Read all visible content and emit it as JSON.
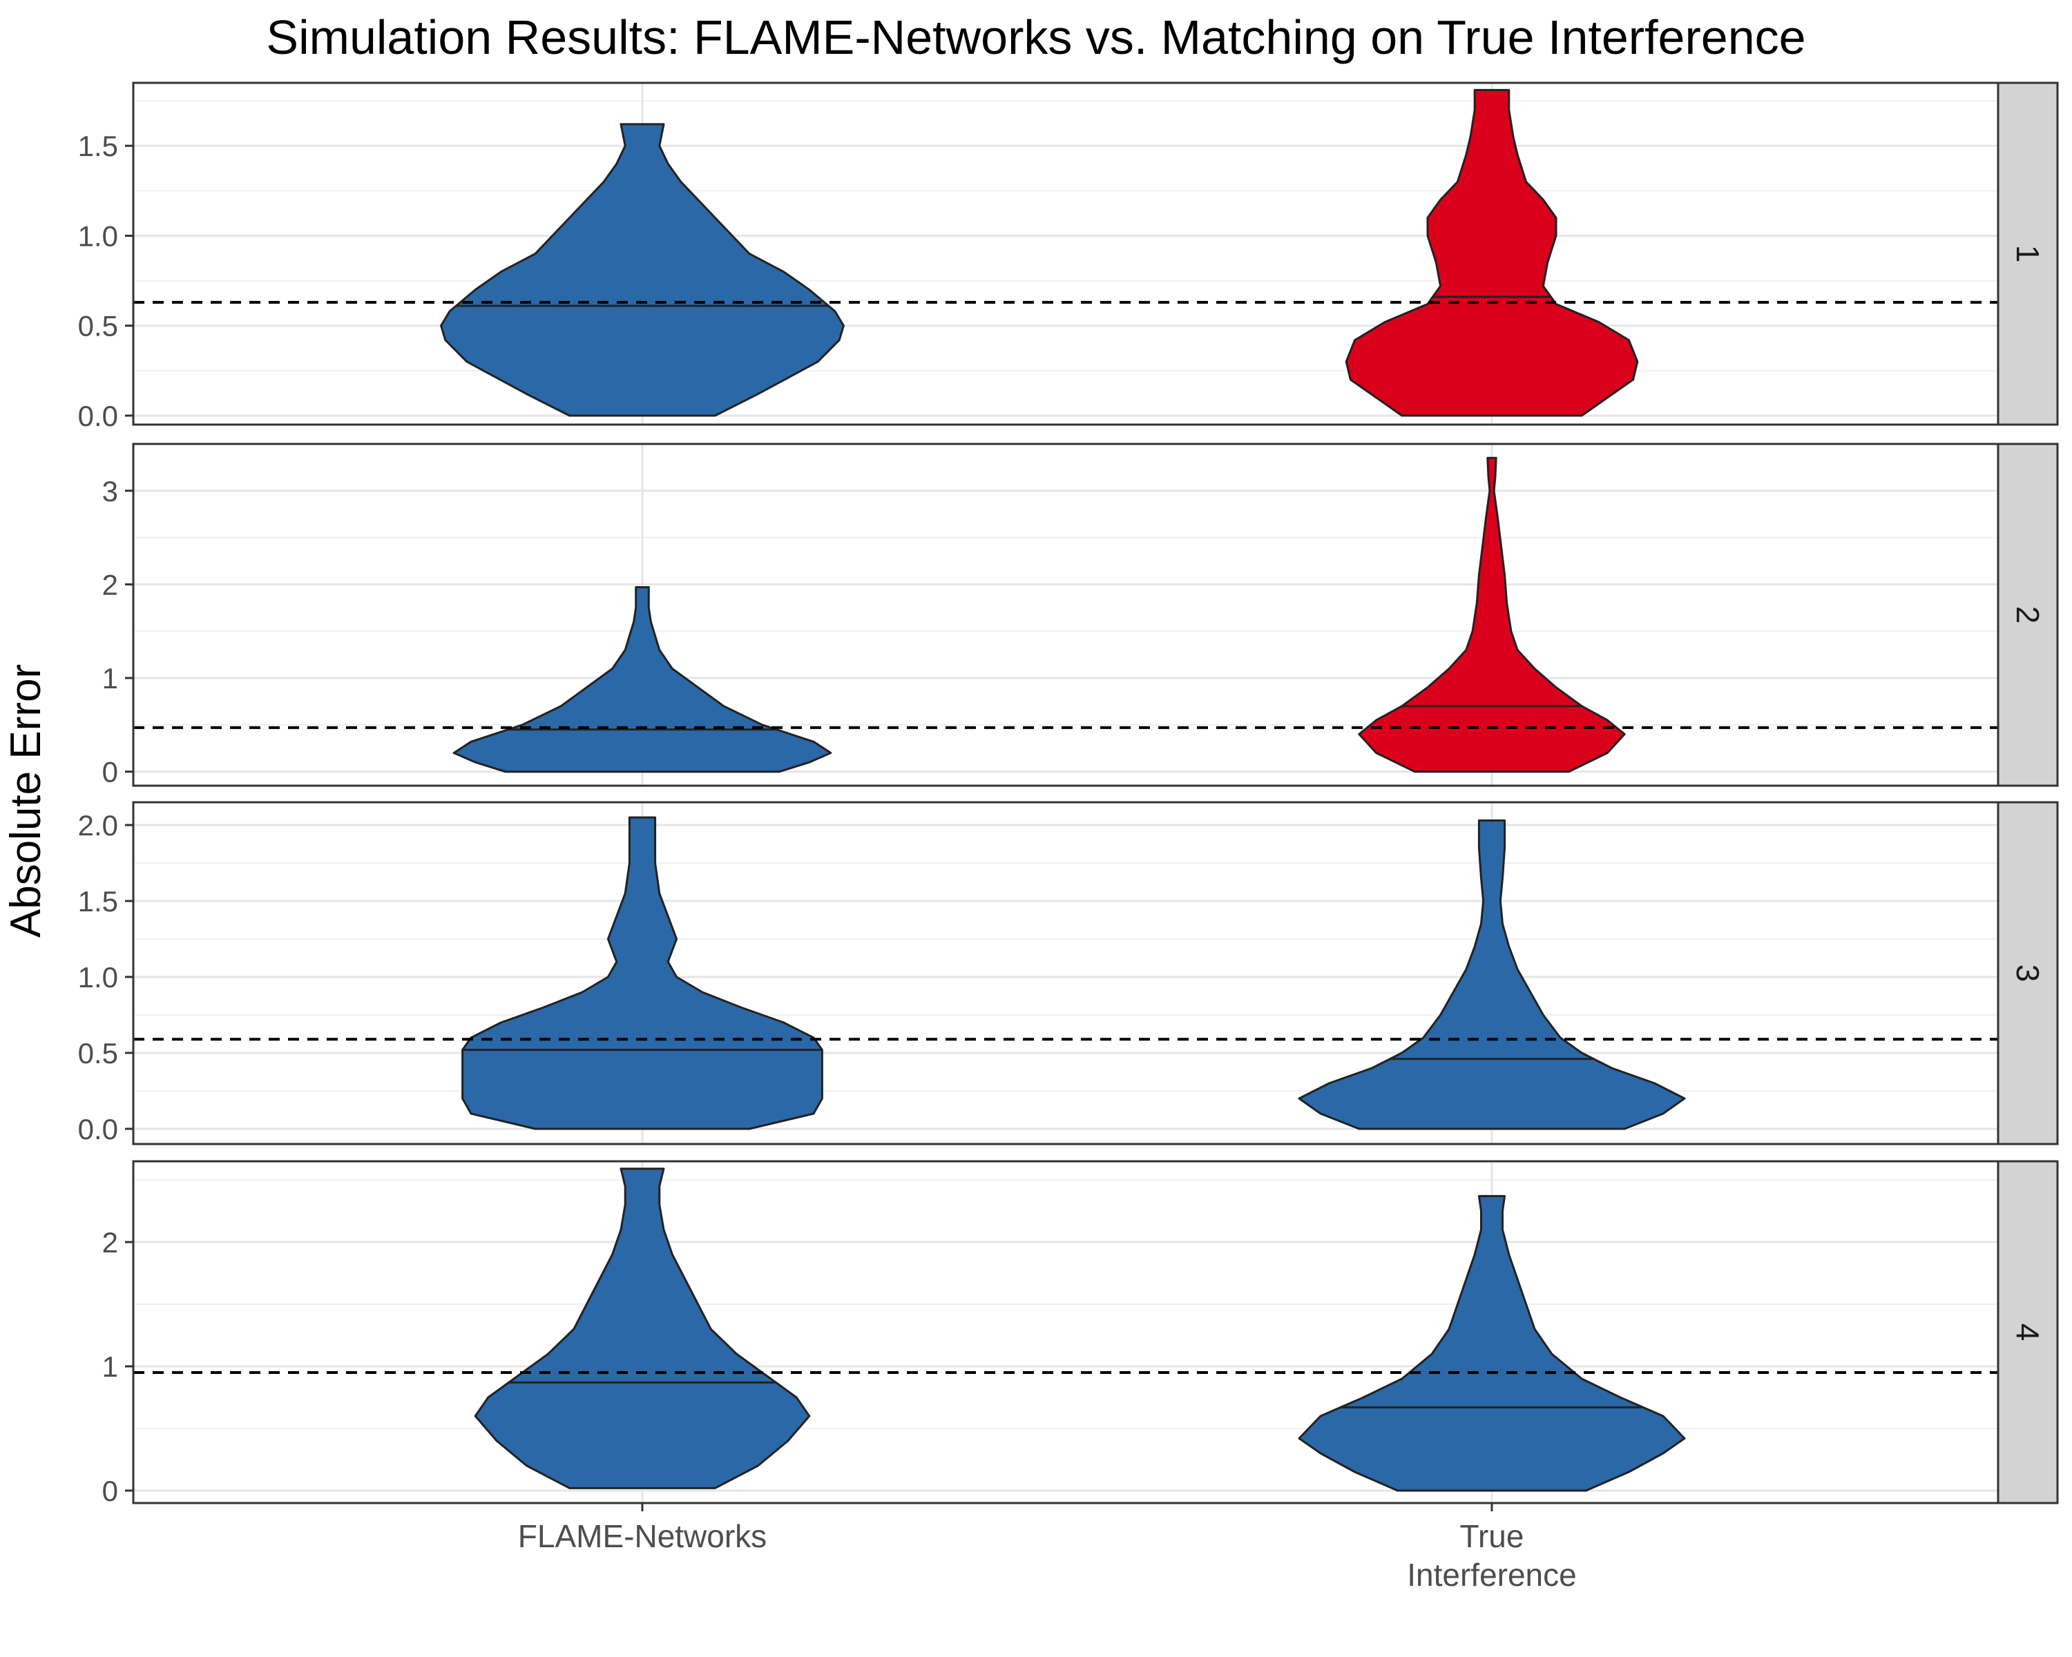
{
  "chart_data": {
    "type": "violin",
    "title": "Simulation Results: FLAME-Networks vs. Matching on True Interference",
    "ylabel": "Absolute Error",
    "xlabel": "",
    "categories": [
      {
        "key": "flame",
        "lines": [
          "FLAME-Networks"
        ]
      },
      {
        "key": "true",
        "lines": [
          "True",
          "Interference"
        ]
      }
    ],
    "colors": {
      "blue": "#2b68a7",
      "red": "#da001b",
      "strip": "#d3d3d3"
    },
    "grid": true,
    "facets": [
      {
        "label": "1",
        "ylim": [
          -0.05,
          1.85
        ],
        "yticks": [
          0.0,
          0.5,
          1.0,
          1.5
        ],
        "tick_labels": [
          "0.0",
          "0.5",
          "1.0",
          "1.5"
        ],
        "reference_line": 0.63,
        "violins": [
          {
            "category": "flame",
            "fill": "blue",
            "median": 0.61,
            "profile": [
              [
                0.0,
                0.17
              ],
              [
                0.12,
                0.27
              ],
              [
                0.3,
                0.41
              ],
              [
                0.42,
                0.46
              ],
              [
                0.5,
                0.47
              ],
              [
                0.58,
                0.45
              ],
              [
                0.7,
                0.39
              ],
              [
                0.8,
                0.33
              ],
              [
                0.9,
                0.25
              ],
              [
                1.0,
                0.21
              ],
              [
                1.1,
                0.17
              ],
              [
                1.2,
                0.13
              ],
              [
                1.3,
                0.09
              ],
              [
                1.4,
                0.06
              ],
              [
                1.5,
                0.04
              ],
              [
                1.62,
                0.05
              ]
            ]
          },
          {
            "category": "true",
            "fill": "red",
            "median": 0.66,
            "profile": [
              [
                0.0,
                0.21
              ],
              [
                0.1,
                0.27
              ],
              [
                0.2,
                0.33
              ],
              [
                0.3,
                0.34
              ],
              [
                0.42,
                0.32
              ],
              [
                0.52,
                0.25
              ],
              [
                0.62,
                0.15
              ],
              [
                0.72,
                0.12
              ],
              [
                0.85,
                0.13
              ],
              [
                1.0,
                0.15
              ],
              [
                1.1,
                0.15
              ],
              [
                1.2,
                0.12
              ],
              [
                1.3,
                0.08
              ],
              [
                1.45,
                0.06
              ],
              [
                1.55,
                0.05
              ],
              [
                1.7,
                0.04
              ],
              [
                1.81,
                0.04
              ]
            ]
          }
        ]
      },
      {
        "label": "2",
        "ylim": [
          -0.15,
          3.5
        ],
        "yticks": [
          0,
          1,
          2,
          3
        ],
        "tick_labels": [
          "0",
          "1",
          "2",
          "3"
        ],
        "reference_line": 0.47,
        "violins": [
          {
            "category": "flame",
            "fill": "blue",
            "median": 0.45,
            "profile": [
              [
                0.0,
                0.32
              ],
              [
                0.1,
                0.39
              ],
              [
                0.2,
                0.44
              ],
              [
                0.32,
                0.4
              ],
              [
                0.5,
                0.28
              ],
              [
                0.7,
                0.19
              ],
              [
                0.9,
                0.13
              ],
              [
                1.1,
                0.07
              ],
              [
                1.3,
                0.04
              ],
              [
                1.45,
                0.03
              ],
              [
                1.6,
                0.02
              ],
              [
                1.75,
                0.015
              ],
              [
                1.9,
                0.015
              ],
              [
                1.97,
                0.015
              ]
            ]
          },
          {
            "category": "true",
            "fill": "red",
            "median": 0.7,
            "profile": [
              [
                0.0,
                0.18
              ],
              [
                0.2,
                0.27
              ],
              [
                0.4,
                0.31
              ],
              [
                0.55,
                0.27
              ],
              [
                0.7,
                0.21
              ],
              [
                0.9,
                0.15
              ],
              [
                1.1,
                0.1
              ],
              [
                1.3,
                0.06
              ],
              [
                1.5,
                0.045
              ],
              [
                1.8,
                0.035
              ],
              [
                2.1,
                0.03
              ],
              [
                2.4,
                0.022
              ],
              [
                2.7,
                0.014
              ],
              [
                2.9,
                0.008
              ],
              [
                3.0,
                0.005
              ],
              [
                3.15,
                0.008
              ],
              [
                3.35,
                0.01
              ]
            ]
          }
        ]
      },
      {
        "label": "3",
        "ylim": [
          -0.1,
          2.15
        ],
        "yticks": [
          0.0,
          0.5,
          1.0,
          1.5,
          2.0
        ],
        "tick_labels": [
          "0.0",
          "0.5",
          "1.0",
          "1.5",
          "2.0"
        ],
        "reference_line": 0.59,
        "violins": [
          {
            "category": "flame",
            "fill": "blue",
            "median": 0.52,
            "profile": [
              [
                0.0,
                0.25
              ],
              [
                0.1,
                0.4
              ],
              [
                0.2,
                0.42
              ],
              [
                0.3,
                0.42
              ],
              [
                0.42,
                0.42
              ],
              [
                0.52,
                0.42
              ],
              [
                0.6,
                0.4
              ],
              [
                0.7,
                0.33
              ],
              [
                0.8,
                0.23
              ],
              [
                0.9,
                0.14
              ],
              [
                1.0,
                0.08
              ],
              [
                1.1,
                0.06
              ],
              [
                1.25,
                0.08
              ],
              [
                1.4,
                0.06
              ],
              [
                1.55,
                0.04
              ],
              [
                1.75,
                0.03
              ],
              [
                1.95,
                0.03
              ],
              [
                2.05,
                0.03
              ]
            ]
          },
          {
            "category": "true",
            "fill": "blue",
            "median": 0.46,
            "profile": [
              [
                0.0,
                0.31
              ],
              [
                0.1,
                0.4
              ],
              [
                0.2,
                0.45
              ],
              [
                0.3,
                0.38
              ],
              [
                0.4,
                0.28
              ],
              [
                0.5,
                0.21
              ],
              [
                0.6,
                0.16
              ],
              [
                0.75,
                0.12
              ],
              [
                0.9,
                0.09
              ],
              [
                1.05,
                0.06
              ],
              [
                1.2,
                0.04
              ],
              [
                1.35,
                0.025
              ],
              [
                1.5,
                0.02
              ],
              [
                1.65,
                0.025
              ],
              [
                1.85,
                0.03
              ],
              [
                2.03,
                0.03
              ]
            ]
          }
        ]
      },
      {
        "label": "4",
        "ylim": [
          -0.1,
          2.65
        ],
        "yticks": [
          0,
          1,
          2
        ],
        "tick_labels": [
          "0",
          "1",
          "2"
        ],
        "reference_line": 0.95,
        "violins": [
          {
            "category": "flame",
            "fill": "blue",
            "median": 0.87,
            "profile": [
              [
                0.02,
                0.17
              ],
              [
                0.2,
                0.27
              ],
              [
                0.4,
                0.34
              ],
              [
                0.6,
                0.39
              ],
              [
                0.75,
                0.36
              ],
              [
                0.9,
                0.3
              ],
              [
                1.1,
                0.22
              ],
              [
                1.3,
                0.16
              ],
              [
                1.5,
                0.13
              ],
              [
                1.7,
                0.1
              ],
              [
                1.9,
                0.07
              ],
              [
                2.1,
                0.05
              ],
              [
                2.3,
                0.04
              ],
              [
                2.45,
                0.04
              ],
              [
                2.59,
                0.05
              ]
            ]
          },
          {
            "category": "true",
            "fill": "blue",
            "median": 0.67,
            "profile": [
              [
                0.0,
                0.22
              ],
              [
                0.15,
                0.32
              ],
              [
                0.3,
                0.4
              ],
              [
                0.42,
                0.45
              ],
              [
                0.6,
                0.4
              ],
              [
                0.75,
                0.3
              ],
              [
                0.9,
                0.21
              ],
              [
                1.1,
                0.14
              ],
              [
                1.3,
                0.1
              ],
              [
                1.5,
                0.08
              ],
              [
                1.7,
                0.06
              ],
              [
                1.9,
                0.04
              ],
              [
                2.1,
                0.025
              ],
              [
                2.25,
                0.025
              ],
              [
                2.37,
                0.03
              ]
            ]
          }
        ]
      }
    ]
  }
}
